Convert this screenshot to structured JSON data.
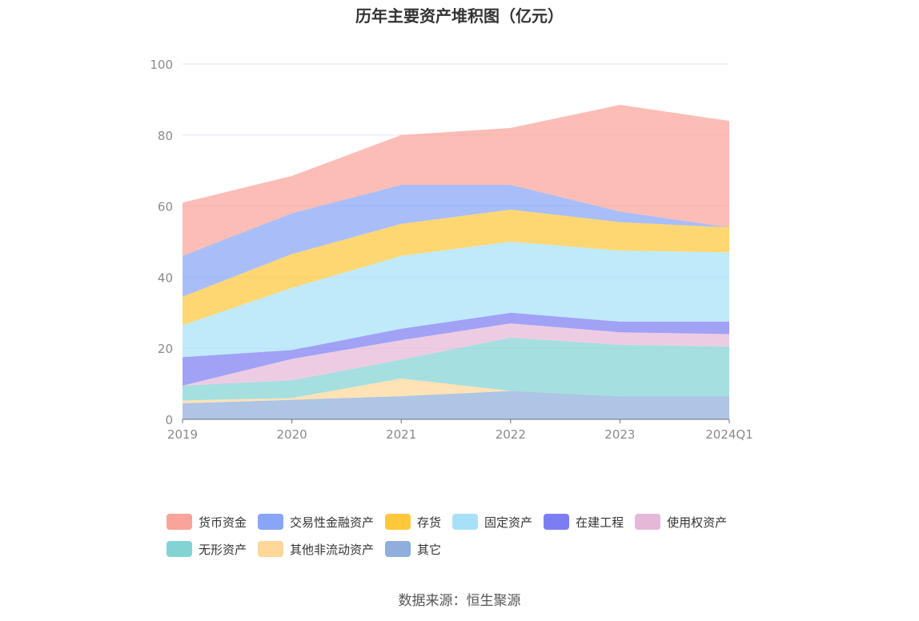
{
  "chart_data": {
    "type": "area",
    "stacked": true,
    "title": "历年主要资产堆积图（亿元）",
    "categories": [
      "2019",
      "2020",
      "2021",
      "2022",
      "2023",
      "2024Q1"
    ],
    "y_ticks": [
      "0",
      "20",
      "40",
      "60",
      "80",
      "100"
    ],
    "ylim": [
      0,
      100
    ],
    "grid": "horizontal",
    "legend_placement": "bottom",
    "series": [
      {
        "name": "其它",
        "color": "#8FAEDB",
        "values": [
          4.5,
          5.5,
          6.5,
          8,
          6.5,
          6.5
        ]
      },
      {
        "name": "其他非流动资产",
        "color": "#FFD799",
        "values": [
          0.8,
          0.5,
          5,
          0,
          0,
          0
        ]
      },
      {
        "name": "无形资产",
        "color": "#83D3D3",
        "values": [
          4.2,
          5,
          5.3,
          15,
          14.5,
          14
        ]
      },
      {
        "name": "使用权资产",
        "color": "#E6B8D8",
        "values": [
          0,
          6,
          5.5,
          4,
          3.5,
          3.5
        ]
      },
      {
        "name": "在建工程",
        "color": "#7D7DF2",
        "values": [
          8,
          2.5,
          3.2,
          3,
          3,
          3.5
        ]
      },
      {
        "name": "固定资产",
        "color": "#A8E0F8",
        "values": [
          9,
          17.5,
          20.5,
          20,
          20,
          19.5
        ]
      },
      {
        "name": "存货",
        "color": "#FFC83C",
        "values": [
          8,
          9.5,
          9,
          9,
          8,
          7
        ]
      },
      {
        "name": "交易性金融资产",
        "color": "#88A5F7",
        "values": [
          11.5,
          11.5,
          11,
          7,
          3,
          0
        ]
      },
      {
        "name": "货币资金",
        "color": "#F9A39A",
        "values": [
          15,
          10.5,
          14,
          16,
          30,
          30
        ]
      }
    ],
    "legend_order": [
      "货币资金",
      "交易性金融资产",
      "存货",
      "固定资产",
      "在建工程",
      "使用权资产",
      "无形资产",
      "其他非流动资产",
      "其它"
    ]
  },
  "source": "数据来源：恒生聚源"
}
